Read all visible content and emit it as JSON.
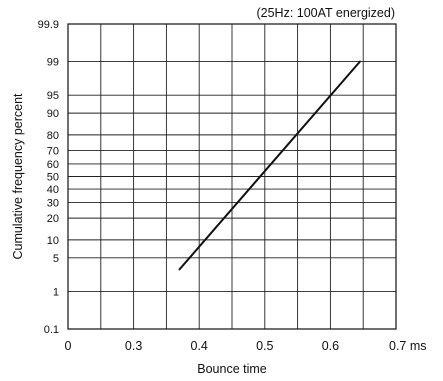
{
  "chart_data": {
    "type": "line",
    "annotation": "(25Hz: 100AT energized)",
    "xlabel": "Bounce time",
    "ylabel": "Cumulative frequency percent",
    "xlim": [
      0.2,
      0.7
    ],
    "x_ticks": [
      {
        "value": 0.2,
        "label": "0"
      },
      {
        "value": 0.3,
        "label": "0.3"
      },
      {
        "value": 0.4,
        "label": "0.4"
      },
      {
        "value": 0.5,
        "label": "0.5"
      },
      {
        "value": 0.6,
        "label": "0.6"
      },
      {
        "value": 0.7,
        "label": "0.7 ms"
      }
    ],
    "x_minor_gridlines": [
      0.25,
      0.35,
      0.45,
      0.55,
      0.65
    ],
    "y_scale": "normal-probability",
    "ylim": [
      0.1,
      99.9
    ],
    "y_ticks": [
      {
        "value": 0.1,
        "label": "0.1"
      },
      {
        "value": 1,
        "label": "1"
      },
      {
        "value": 5,
        "label": "5"
      },
      {
        "value": 10,
        "label": "10"
      },
      {
        "value": 20,
        "label": "20"
      },
      {
        "value": 30,
        "label": "30"
      },
      {
        "value": 40,
        "label": "40"
      },
      {
        "value": 50,
        "label": "50"
      },
      {
        "value": 60,
        "label": "60"
      },
      {
        "value": 70,
        "label": "70"
      },
      {
        "value": 80,
        "label": "80"
      },
      {
        "value": 90,
        "label": "90"
      },
      {
        "value": 95,
        "label": "95"
      },
      {
        "value": 99,
        "label": "99"
      },
      {
        "value": 99.9,
        "label": "99.9"
      }
    ],
    "grid": true,
    "series": [
      {
        "x": [
          0.37,
          0.645
        ],
        "y": [
          3,
          99
        ]
      }
    ],
    "line_color": "#111111"
  }
}
